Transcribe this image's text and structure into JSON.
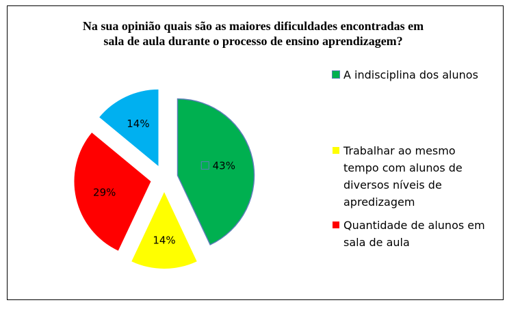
{
  "chart_data": {
    "type": "pie",
    "title": "Na sua opinião quais são as maiores dificuldades encontradas em sala de aula durante o processo de ensino aprendizagem?",
    "title_lines": [
      "Na sua opinião quais são as maiores dificuldades encontradas em",
      "sala de aula durante o processo de ensino aprendizagem?"
    ],
    "slices": [
      {
        "label": "A indisciplina dos alunos",
        "value": 43,
        "data_label": "43%",
        "color": "#00B050"
      },
      {
        "label": "Trabalhar ao mesmo tempo com alunos de diversos níveis de apredizagem",
        "value": 14,
        "data_label": "14%",
        "color": "#FFFF00"
      },
      {
        "label": "Quantidade de alunos em sala de aula",
        "value": 29,
        "data_label": "29%",
        "color": "#FF0000"
      },
      {
        "label": "",
        "value": 14,
        "data_label": "14%",
        "color": "#00B0F0"
      }
    ],
    "legend": [
      {
        "label": "A indisciplina dos alunos",
        "color": "#00B050"
      },
      {
        "label": "Trabalhar ao mesmo tempo com alunos de diversos níveis de apredizagem",
        "color": "#FFFF00"
      },
      {
        "label": "Quantidade de alunos em sala de aula",
        "color": "#FF0000"
      }
    ],
    "legend_position": "right",
    "exploded": true
  }
}
